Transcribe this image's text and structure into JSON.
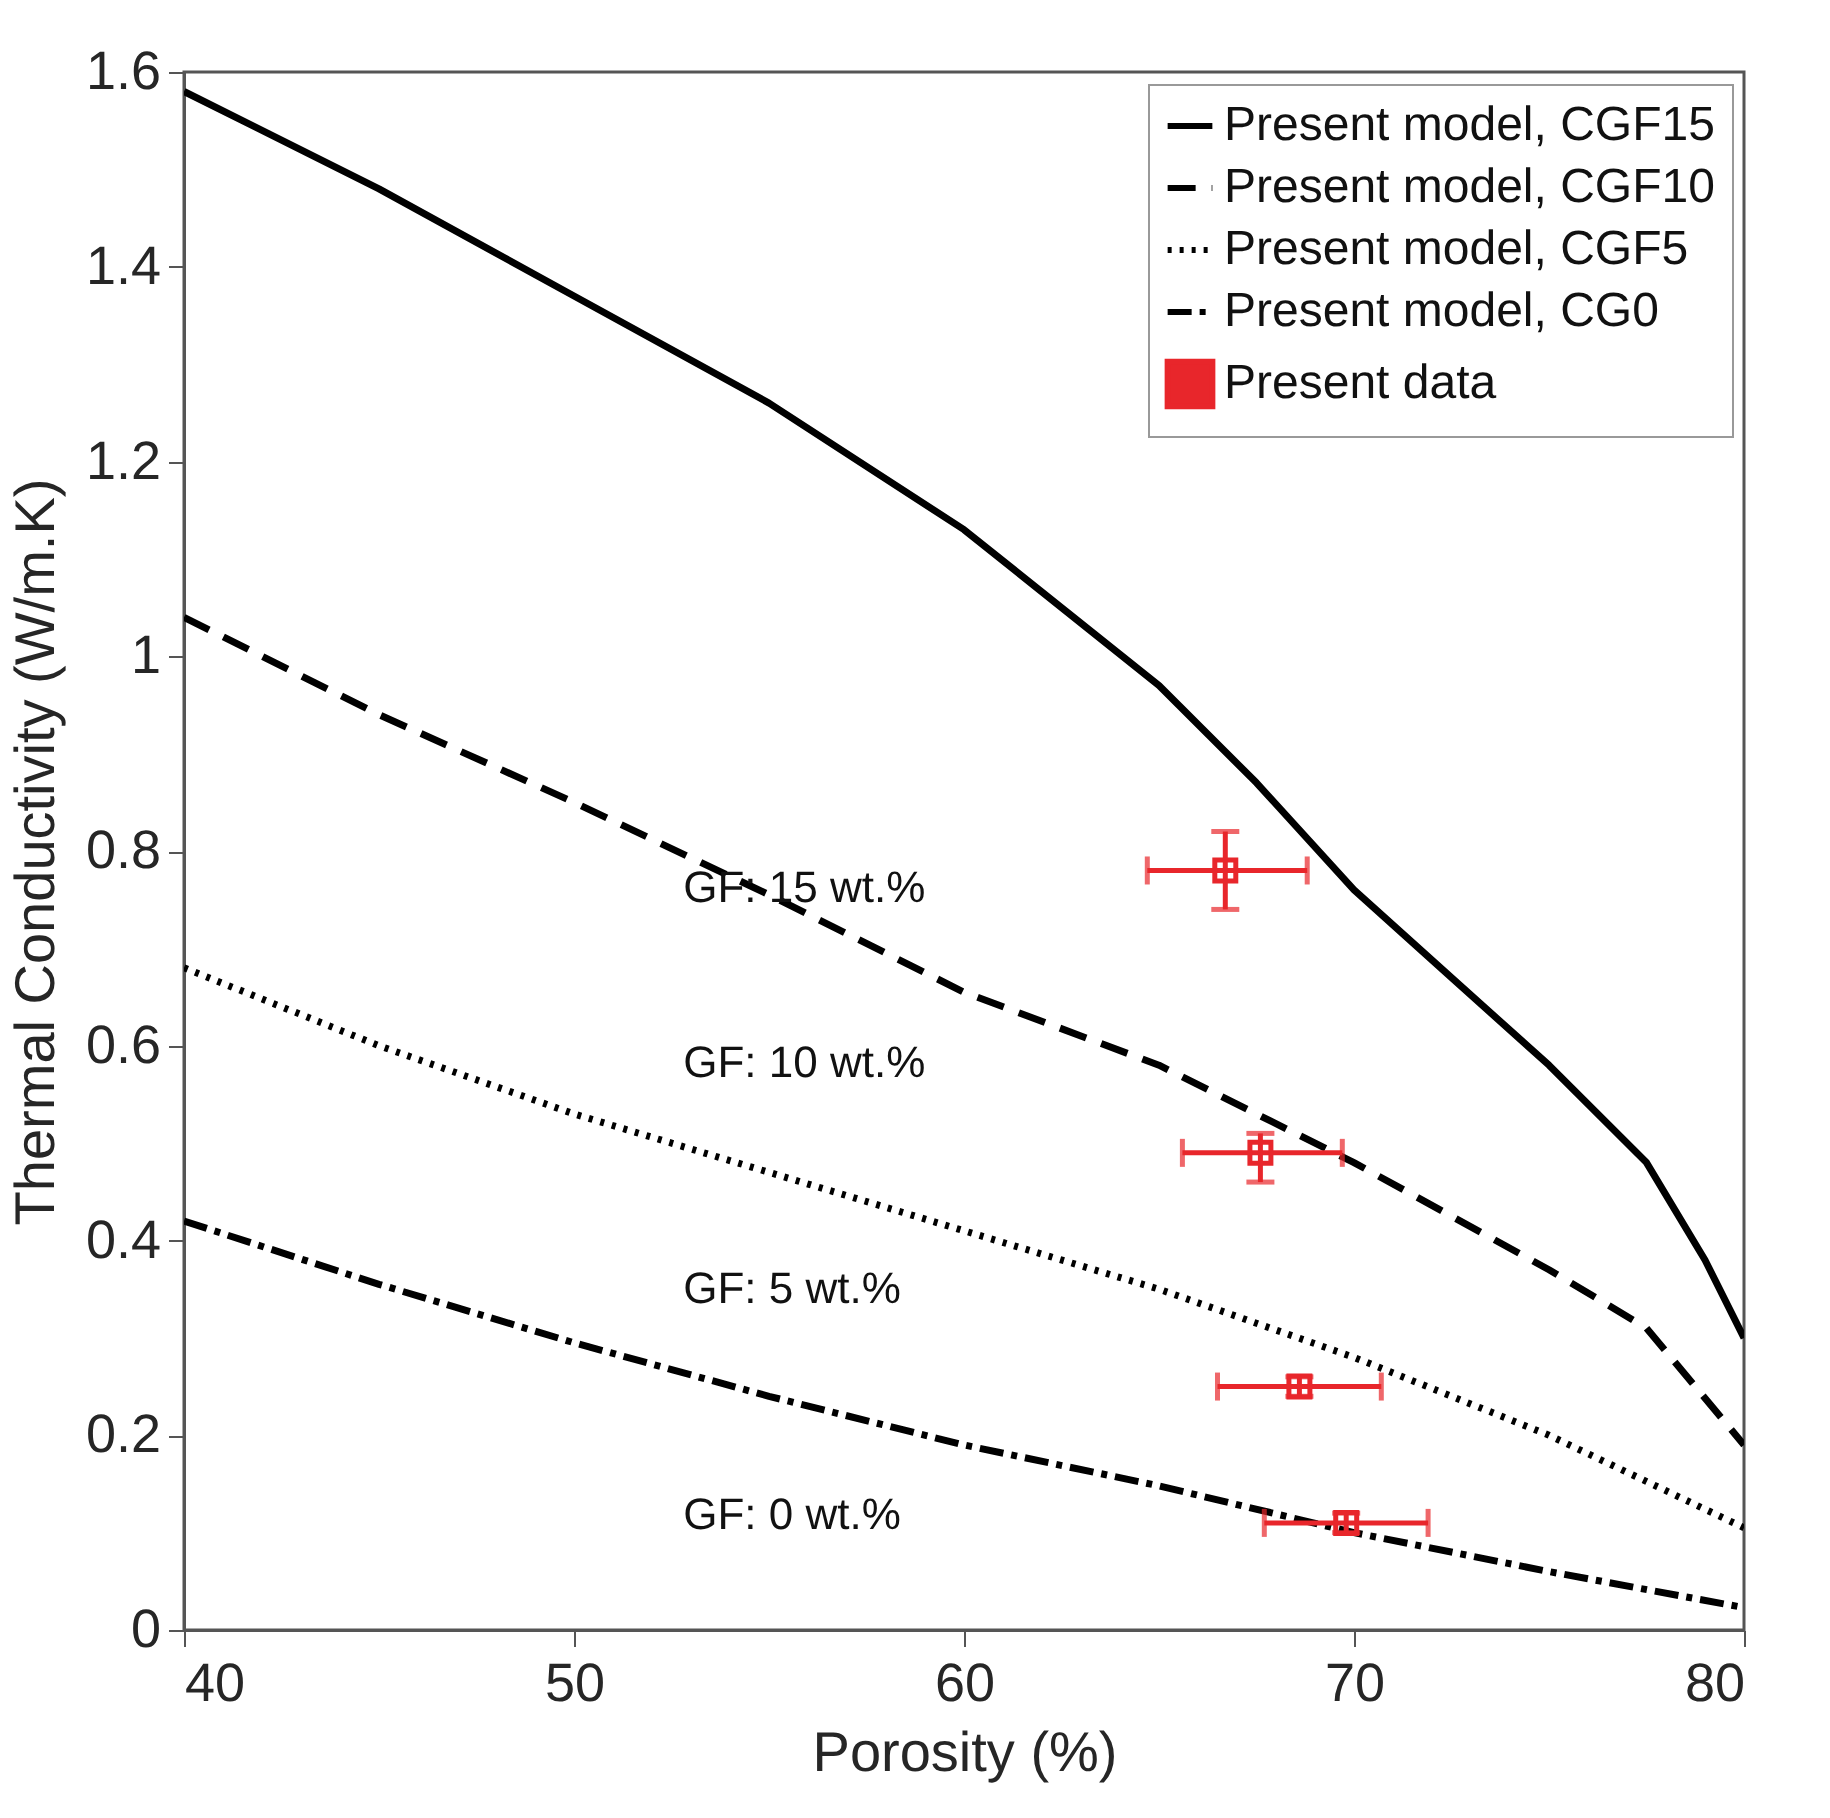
{
  "chart_data": {
    "type": "line",
    "xlabel": "Porosity (%)",
    "ylabel": "Thermal Conductivity (W/m.K)",
    "xlim": [
      40,
      80
    ],
    "xticks": [
      40,
      50,
      60,
      70,
      80
    ],
    "ylim": [
      0,
      1.6
    ],
    "yticks": [
      0,
      0.2,
      0.4,
      0.6,
      0.8,
      1,
      1.2,
      1.4,
      1.6
    ],
    "grid": false,
    "legend": "top right",
    "series": [
      {
        "name": "Present model, CGF15",
        "color": "#000000",
        "line_style": "solid",
        "x": [
          40,
          45,
          50,
          55,
          60,
          65,
          67.5,
          70,
          72.5,
          75,
          77.5,
          79,
          80
        ],
        "values": [
          1.58,
          1.48,
          1.37,
          1.26,
          1.13,
          0.97,
          0.87,
          0.76,
          0.67,
          0.58,
          0.48,
          0.38,
          0.3
        ]
      },
      {
        "name": "Present model, CGF10",
        "color": "#000000",
        "line_style": "dashed",
        "x": [
          40,
          45,
          50,
          55,
          60,
          65,
          70,
          75,
          77.5,
          80
        ],
        "values": [
          1.04,
          0.94,
          0.85,
          0.755,
          0.655,
          0.58,
          0.48,
          0.37,
          0.31,
          0.19
        ]
      },
      {
        "name": "Present model, CGF5",
        "color": "#000000",
        "line_style": "dotted",
        "x": [
          40,
          45,
          50,
          55,
          60,
          65,
          70,
          75,
          80
        ],
        "values": [
          0.68,
          0.6,
          0.53,
          0.47,
          0.41,
          0.35,
          0.28,
          0.2,
          0.105
        ]
      },
      {
        "name": "Present model, CG0",
        "color": "#000000",
        "line_style": "dashdot",
        "x": [
          40,
          45,
          50,
          55,
          60,
          65,
          70,
          75,
          80
        ],
        "values": [
          0.42,
          0.355,
          0.295,
          0.24,
          0.19,
          0.148,
          0.1,
          0.06,
          0.023
        ]
      },
      {
        "name": "Present data",
        "type": "scatter",
        "marker": "square",
        "color": "#e8262b",
        "x": [
          66.7,
          67.6,
          68.6,
          69.8
        ],
        "values": [
          0.78,
          0.49,
          0.25,
          0.11
        ],
        "errors": [
          [
            0.74,
            0.82
          ],
          [
            0.46,
            0.51
          ],
          [
            0.24,
            0.26
          ],
          [
            0.1,
            0.12
          ]
        ],
        "xerrors": [
          [
            64.7,
            68.8
          ],
          [
            65.6,
            69.7
          ],
          [
            66.5,
            70.7
          ],
          [
            67.7,
            71.9
          ]
        ]
      }
    ],
    "annotations": [
      "GF: 15 wt.%",
      "GF: 10 wt.%",
      "GF: 5 wt.%",
      "GF: 0 wt.%"
    ]
  }
}
